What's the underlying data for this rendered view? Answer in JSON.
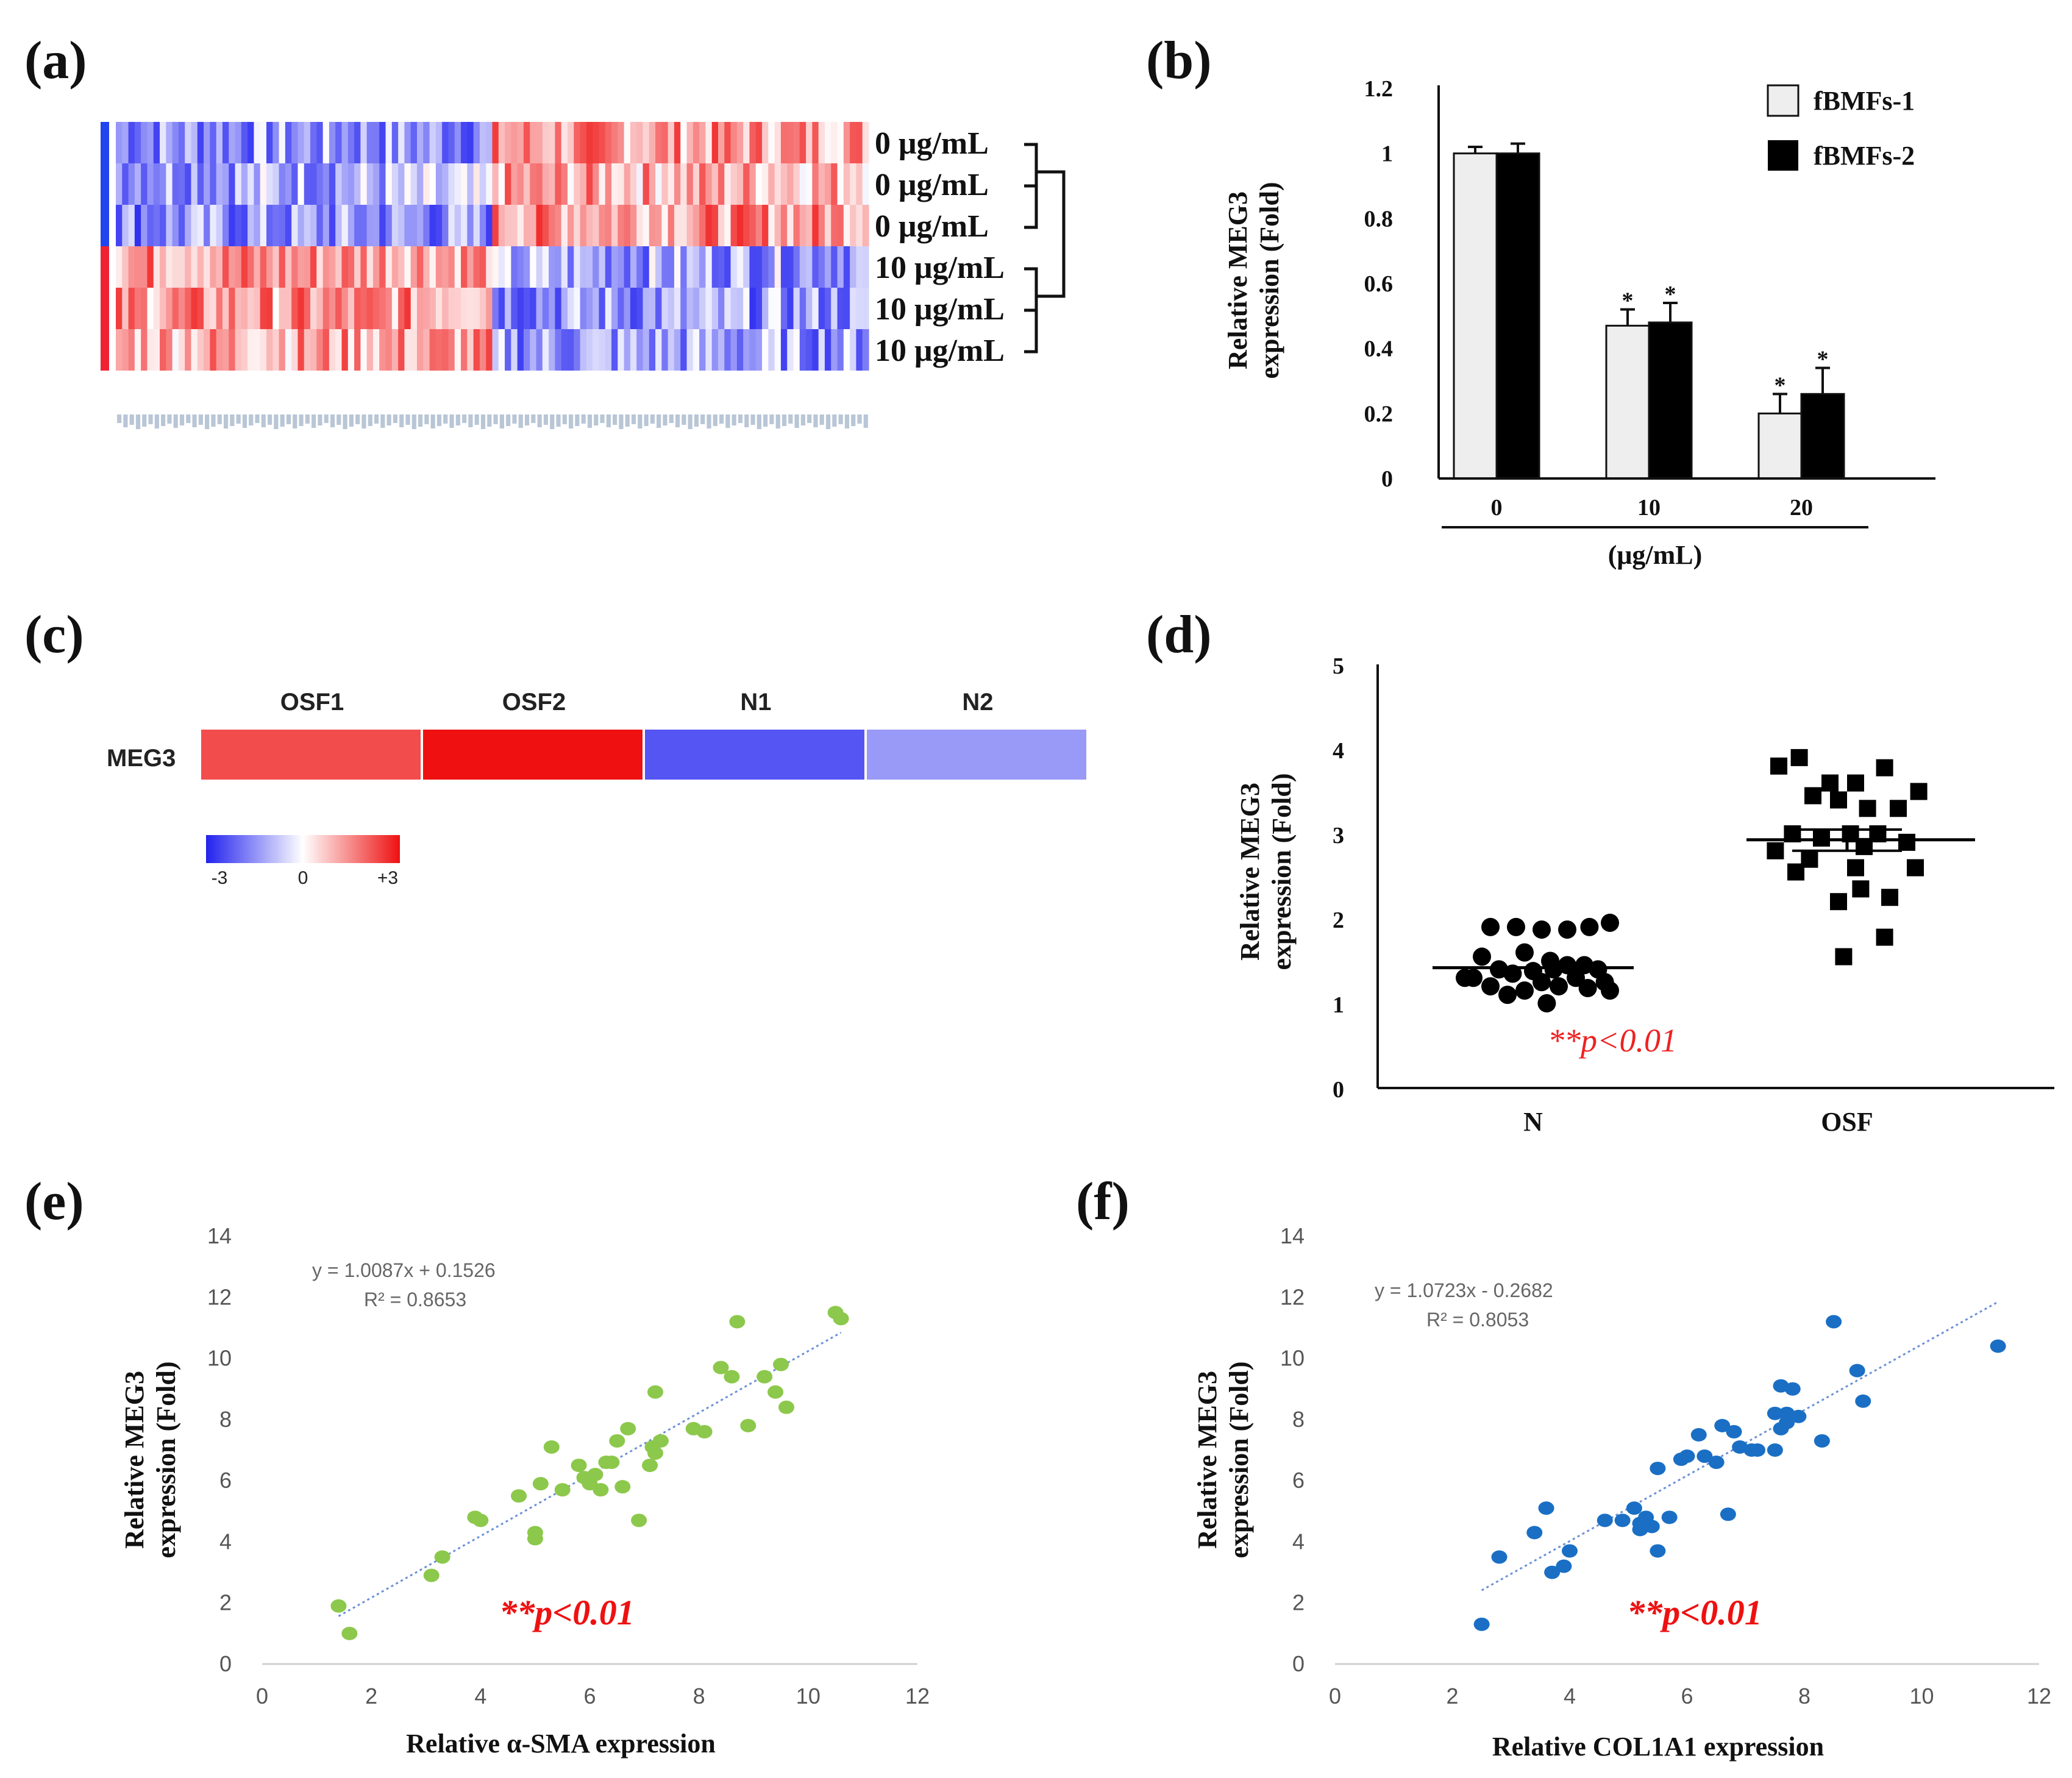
{
  "colors": {
    "red": "#ee2222",
    "blue": "#3333ee",
    "green": "#8cc84b",
    "steel_blue": "#1a6fc4",
    "trend": "#6a8fd8",
    "bar_light": "#eeeeee",
    "bar_dark": "#000000"
  },
  "panels": {
    "a": "(a)",
    "b": "(b)",
    "c": "(c)",
    "d": "(d)",
    "e": "(e)",
    "f": "(f)"
  },
  "chart_data": [
    {
      "id": "a",
      "type": "heatmap",
      "title": "",
      "row_labels": [
        "0 μg/mL",
        "0 μg/mL",
        "0 μg/mL",
        "10 μg/mL",
        "10 μg/mL",
        "10 μg/mL"
      ],
      "n_columns": 120,
      "block_pattern": {
        "left_columns_fraction": 0.5,
        "rows": [
          {
            "left": -1.2,
            "right": 1.2
          },
          {
            "left": -0.9,
            "right": 1.0
          },
          {
            "left": -1.3,
            "right": 1.3
          },
          {
            "left": 1.3,
            "right": -1.0
          },
          {
            "left": 1.2,
            "right": -1.2
          },
          {
            "left": 1.1,
            "right": -1.1
          }
        ]
      },
      "dendrogram": "rows 1-3 vs rows 4-6"
    },
    {
      "id": "b",
      "type": "bar",
      "categories": [
        "0",
        "10",
        "20"
      ],
      "xlabel": "(μg/mL)",
      "ylabel_lines": [
        "Relative MEG3",
        "expression (Fold)"
      ],
      "ylim": [
        0,
        1.2
      ],
      "yticks": [
        "0",
        "0.2",
        "0.4",
        "0.6",
        "0.8",
        "1",
        "1.2"
      ],
      "series": [
        {
          "name": "fBMFs-1",
          "values": [
            1.0,
            0.47,
            0.2
          ],
          "errors": [
            0.02,
            0.05,
            0.06
          ],
          "color": "#eeeeee"
        },
        {
          "name": "fBMFs-2",
          "values": [
            1.0,
            0.48,
            0.26
          ],
          "errors": [
            0.03,
            0.06,
            0.08
          ],
          "color": "#000000"
        }
      ],
      "significance": [
        {
          "series": 0,
          "category": 1,
          "mark": "*"
        },
        {
          "series": 1,
          "category": 1,
          "mark": "*"
        },
        {
          "series": 0,
          "category": 2,
          "mark": "*"
        },
        {
          "series": 1,
          "category": 2,
          "mark": "*"
        }
      ]
    },
    {
      "id": "c",
      "type": "heatmap",
      "row_label": "MEG3",
      "columns": [
        "OSF1",
        "OSF2",
        "N1",
        "N2"
      ],
      "values": [
        2.1,
        2.8,
        -2.0,
        -1.2
      ],
      "scale": {
        "min": -3,
        "mid": 0,
        "max": 3,
        "labels": [
          "-3",
          "0",
          "+3"
        ]
      }
    },
    {
      "id": "d",
      "type": "scatter",
      "categories": [
        "N",
        "OSF"
      ],
      "ylabel_lines": [
        "Relative MEG3",
        "expression (Fold)"
      ],
      "ylim": [
        0,
        5
      ],
      "yticks": [
        "0",
        "1",
        "2",
        "3",
        "4",
        "5"
      ],
      "annotation": "**p<0.01",
      "groups": [
        {
          "name": "N",
          "marker": "circle",
          "mean": 1.42,
          "points": [
            1.9,
            1.9,
            1.87,
            1.87,
            1.9,
            1.95,
            1.55,
            1.6,
            1.5,
            1.45,
            1.45,
            1.4,
            1.4,
            1.38,
            1.4,
            1.35,
            1.3,
            1.3,
            1.25,
            1.25,
            1.2,
            1.2,
            1.18,
            1.15,
            1.15,
            1.3,
            1.0,
            1.1
          ],
          "offsets": [
            -0.25,
            -0.1,
            0.05,
            0.2,
            0.33,
            0.45,
            -0.3,
            -0.05,
            0.1,
            0.2,
            0.3,
            -0.2,
            0.38,
            0.0,
            0.12,
            -0.12,
            0.25,
            -0.35,
            0.05,
            0.42,
            -0.25,
            0.15,
            0.32,
            -0.05,
            0.45,
            -0.4,
            0.08,
            -0.15
          ]
        },
        {
          "name": "OSF",
          "marker": "square",
          "mean": 2.93,
          "points": [
            3.9,
            3.6,
            3.6,
            3.78,
            3.8,
            3.5,
            3.45,
            3.3,
            3.4,
            3.3,
            3.0,
            3.0,
            3.0,
            2.95,
            2.9,
            2.85,
            2.8,
            2.7,
            2.6,
            2.6,
            2.55,
            2.2,
            2.25,
            2.35,
            1.78,
            1.55
          ],
          "offsets": [
            -0.28,
            -0.1,
            0.05,
            0.22,
            -0.4,
            0.42,
            -0.2,
            0.3,
            -0.05,
            0.12,
            -0.32,
            0.02,
            0.18,
            -0.15,
            0.35,
            0.1,
            -0.42,
            -0.22,
            0.05,
            0.4,
            -0.3,
            -0.05,
            0.25,
            0.08,
            0.22,
            -0.02
          ]
        }
      ]
    },
    {
      "id": "e",
      "type": "scatter",
      "xlabel": "Relative α-SMA expression",
      "ylabel_lines": [
        "Relative MEG3",
        "expression (Fold)"
      ],
      "xlim": [
        0,
        12
      ],
      "ylim": [
        0,
        14
      ],
      "xticks": [
        "0",
        "2",
        "4",
        "6",
        "8",
        "10",
        "12"
      ],
      "yticks": [
        "0",
        "2",
        "4",
        "6",
        "8",
        "10",
        "12",
        "14"
      ],
      "equation": "y = 1.0087x + 0.1526",
      "r2": "R² = 0.8653",
      "annotation": "**p<0.01",
      "trend": {
        "slope": 1.0087,
        "intercept": 0.1526,
        "x_range": [
          1.4,
          10.6
        ]
      },
      "x": [
        1.4,
        1.6,
        3.1,
        3.3,
        3.9,
        4.0,
        4.7,
        5.0,
        5.0,
        5.1,
        5.3,
        5.5,
        5.8,
        5.9,
        6.0,
        6.1,
        6.2,
        6.3,
        6.4,
        6.5,
        6.6,
        6.7,
        6.9,
        7.1,
        7.2,
        7.2,
        7.3,
        7.9,
        8.1,
        8.4,
        8.6,
        8.7,
        8.9,
        9.2,
        9.4,
        9.5,
        9.6,
        10.5,
        10.6,
        7.15
      ],
      "y": [
        1.9,
        1.0,
        2.9,
        3.5,
        4.8,
        4.7,
        5.5,
        4.1,
        4.3,
        5.9,
        7.1,
        5.7,
        6.5,
        6.1,
        5.9,
        6.2,
        5.7,
        6.6,
        6.6,
        7.3,
        5.8,
        7.7,
        4.7,
        6.5,
        6.9,
        8.9,
        7.3,
        7.7,
        7.6,
        9.7,
        9.4,
        11.2,
        7.8,
        9.4,
        8.9,
        9.8,
        8.4,
        11.5,
        11.3,
        7.1
      ]
    },
    {
      "id": "f",
      "type": "scatter",
      "xlabel": "Relative COL1A1 expression",
      "ylabel_lines": [
        "Relative MEG3",
        "expression (Fold)"
      ],
      "xlim": [
        0,
        12
      ],
      "ylim": [
        0,
        14
      ],
      "xticks": [
        "0",
        "2",
        "4",
        "6",
        "8",
        "10",
        "12"
      ],
      "yticks": [
        "0",
        "2",
        "4",
        "6",
        "8",
        "10",
        "12",
        "14"
      ],
      "equation": "y = 1.0723x - 0.2682",
      "r2": "R² = 0.8053",
      "annotation": "**p<0.01",
      "trend": {
        "slope": 1.0723,
        "intercept": -0.2682,
        "x_range": [
          2.5,
          11.3
        ]
      },
      "x": [
        2.5,
        2.8,
        3.4,
        3.6,
        3.7,
        3.9,
        4.0,
        4.6,
        4.9,
        5.1,
        5.2,
        5.3,
        5.4,
        5.5,
        5.5,
        5.7,
        5.9,
        6.0,
        6.2,
        6.3,
        6.5,
        6.6,
        6.7,
        6.8,
        6.9,
        7.1,
        7.2,
        7.5,
        7.6,
        7.6,
        7.7,
        7.7,
        7.8,
        7.9,
        8.3,
        8.5,
        8.9,
        9.0,
        11.3,
        5.2,
        7.5
      ],
      "y": [
        1.3,
        3.5,
        4.3,
        5.1,
        3.0,
        3.2,
        3.7,
        4.7,
        4.7,
        5.1,
        4.4,
        4.8,
        4.5,
        6.4,
        3.7,
        4.8,
        6.7,
        6.8,
        7.5,
        6.8,
        6.6,
        7.8,
        4.9,
        7.6,
        7.1,
        7.0,
        7.0,
        8.2,
        9.1,
        7.7,
        8.2,
        7.9,
        9.0,
        8.1,
        7.3,
        11.2,
        9.6,
        8.6,
        10.4,
        4.6,
        7.0
      ]
    }
  ]
}
